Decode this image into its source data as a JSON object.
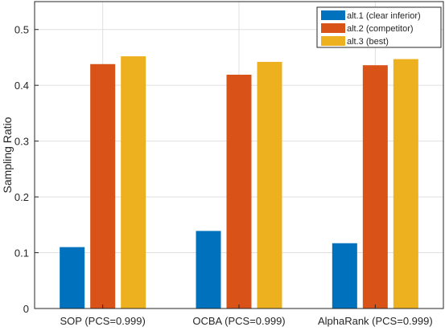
{
  "chart_data": {
    "type": "bar",
    "ylabel": "Sampling Ratio",
    "xlabel": "",
    "title": "",
    "ylim": [
      0,
      0.55
    ],
    "yticks": [
      0,
      0.1,
      0.2,
      0.3,
      0.4,
      0.5
    ],
    "ytick_labels": [
      "0",
      "0.1",
      "0.2",
      "0.3",
      "0.4",
      "0.5"
    ],
    "grid": true,
    "legend_position": "top-right",
    "categories": [
      "SOP (PCS=0.999)",
      "OCBA (PCS=0.999)",
      "AlphaRank (PCS=0.999)"
    ],
    "series": [
      {
        "name": "alt.1 (clear inferior)",
        "color": "#0072BD",
        "values": [
          0.11,
          0.139,
          0.117
        ]
      },
      {
        "name": "alt.2 (competitor)",
        "color": "#D95319",
        "values": [
          0.438,
          0.419,
          0.436
        ]
      },
      {
        "name": "alt.3 (best)",
        "color": "#EDB120",
        "values": [
          0.452,
          0.442,
          0.447
        ]
      }
    ]
  }
}
